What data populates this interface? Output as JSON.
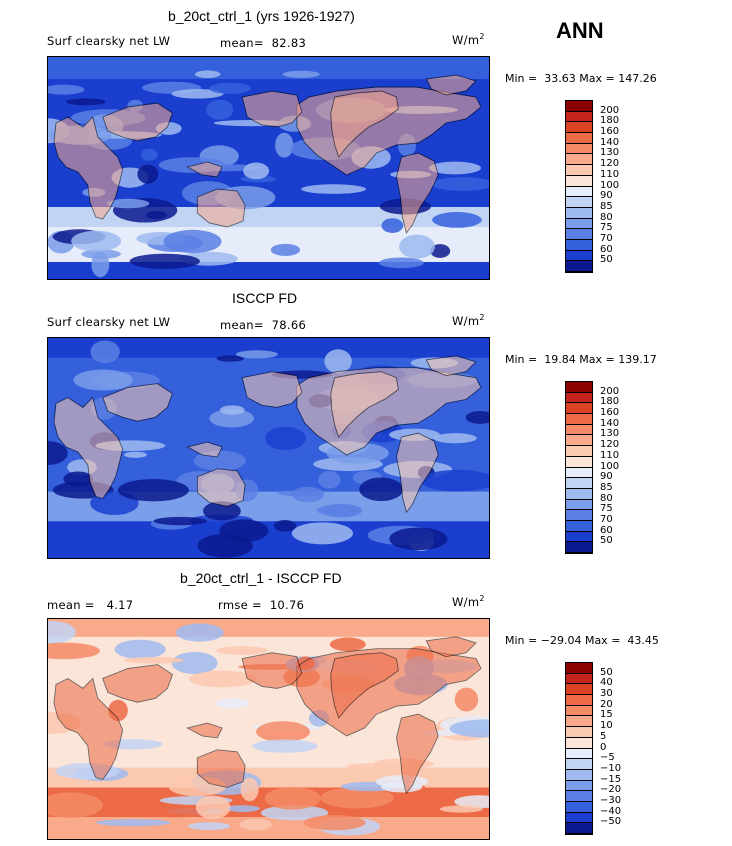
{
  "season": "ANN",
  "chart_data": [
    {
      "type": "heatmap",
      "title": "b_20ct_ctrl_1 (yrs 1926-1927)",
      "left_label": "Surf clearsky net LW",
      "stat_label": "mean=",
      "stat_value": "82.83",
      "units": "W/m",
      "units_sup": "2",
      "min_label": "Min =",
      "min": "33.63",
      "max_label": "Max =",
      "max": "147.26",
      "colorbar_levels": [
        "200",
        "180",
        "160",
        "140",
        "130",
        "120",
        "110",
        "100",
        "90",
        "85",
        "80",
        "75",
        "70",
        "60",
        "50"
      ],
      "colorbar_colors": [
        "#8b0000",
        "#c4241b",
        "#dc4324",
        "#ec6a45",
        "#f48b66",
        "#f8aa8b",
        "#fbc8b0",
        "#fbe5d8",
        "#e6ecf9",
        "#c2d4f4",
        "#9fbbf0",
        "#7b9eea",
        "#5a80e4",
        "#3560dc",
        "#1a3fcf",
        "#0a1a8e"
      ]
    },
    {
      "type": "heatmap",
      "title": "ISCCP FD",
      "left_label": "Surf clearsky net LW",
      "stat_label": "mean=",
      "stat_value": "78.66",
      "units": "W/m",
      "units_sup": "2",
      "min_label": "Min =",
      "min": "19.84",
      "max_label": "Max =",
      "max": "139.17",
      "colorbar_levels": [
        "200",
        "180",
        "160",
        "140",
        "130",
        "120",
        "110",
        "100",
        "90",
        "85",
        "80",
        "75",
        "70",
        "60",
        "50"
      ],
      "colorbar_colors": [
        "#8b0000",
        "#c4241b",
        "#dc4324",
        "#ec6a45",
        "#f48b66",
        "#f8aa8b",
        "#fbc8b0",
        "#fbe5d8",
        "#e6ecf9",
        "#c2d4f4",
        "#9fbbf0",
        "#7b9eea",
        "#5a80e4",
        "#3560dc",
        "#1a3fcf",
        "#0a1a8e"
      ]
    },
    {
      "type": "heatmap",
      "title": "b_20ct_ctrl_1 - ISCCP FD",
      "left_label": "mean =",
      "left_value": "4.17",
      "stat_label": "rmse =",
      "stat_value": "10.76",
      "units": "W/m",
      "units_sup": "2",
      "min_label": "Min =",
      "min": "−29.04",
      "max_label": "Max =",
      "max": "43.45",
      "colorbar_levels": [
        "50",
        "40",
        "30",
        "20",
        "15",
        "10",
        "5",
        "0",
        "−5",
        "−10",
        "−15",
        "−20",
        "−30",
        "−40",
        "−50"
      ],
      "colorbar_colors": [
        "#8b0000",
        "#c4241b",
        "#dc4324",
        "#ec6a45",
        "#f48b66",
        "#f8aa8b",
        "#fbc8b0",
        "#fbe5d8",
        "#e6ecf9",
        "#c2d4f4",
        "#9fbbf0",
        "#7b9eea",
        "#5a80e4",
        "#3560dc",
        "#1a3fcf",
        "#0a1a8e"
      ]
    }
  ]
}
